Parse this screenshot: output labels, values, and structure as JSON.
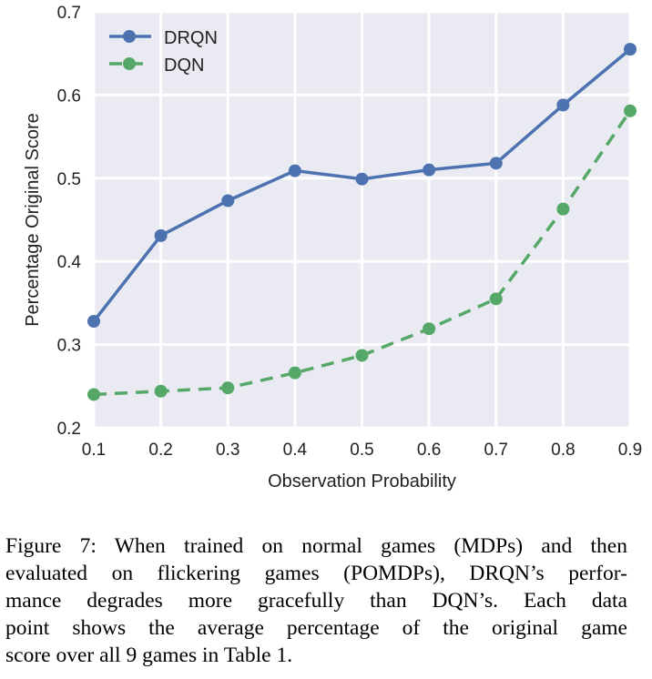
{
  "chart_data": {
    "type": "line",
    "xlabel": "Observation Probability",
    "ylabel": "Percentage Original Score",
    "xlim": [
      0.1,
      0.9
    ],
    "ylim": [
      0.2,
      0.7
    ],
    "xticks": [
      "0.1",
      "0.2",
      "0.3",
      "0.4",
      "0.5",
      "0.6",
      "0.7",
      "0.8",
      "0.9"
    ],
    "yticks": [
      "0.2",
      "0.3",
      "0.4",
      "0.5",
      "0.6",
      "0.7"
    ],
    "grid": true,
    "legend": "top-left",
    "background": "#EAEAF2",
    "x": [
      0.1,
      0.2,
      0.3,
      0.4,
      0.5,
      0.6,
      0.7,
      0.8,
      0.9
    ],
    "series": [
      {
        "name": "DRQN",
        "color": "#4C72B0",
        "style": "solid",
        "values": [
          0.328,
          0.431,
          0.473,
          0.509,
          0.499,
          0.51,
          0.518,
          0.588,
          0.655
        ]
      },
      {
        "name": "DQN",
        "color": "#55A868",
        "style": "dashed",
        "values": [
          0.24,
          0.244,
          0.248,
          0.266,
          0.287,
          0.319,
          0.355,
          0.463,
          0.581
        ]
      }
    ]
  },
  "caption": [
    "Figure 7: When trained on normal games (MDPs) and then",
    "evaluated on flickering games (POMDPs), DRQN’s perfor-",
    "mance degrades more gracefully than DQN’s. Each data",
    "point shows the average percentage of the original game",
    "score over all 9 games in Table 1."
  ]
}
